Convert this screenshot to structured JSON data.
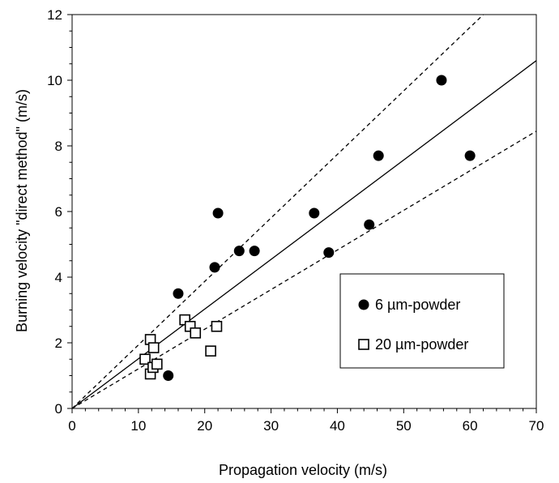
{
  "chart_data": {
    "type": "scatter",
    "title": "",
    "xlabel": "Propagation velocity (m/s)",
    "ylabel": "Burning velocity \"direct method\" (m/s)",
    "xlim": [
      0,
      70
    ],
    "ylim": [
      0,
      12
    ],
    "x_ticks": [
      0,
      10,
      20,
      30,
      40,
      50,
      60,
      70
    ],
    "y_ticks": [
      0,
      2,
      4,
      6,
      8,
      10,
      12
    ],
    "grid": false,
    "legend_position": "lower-right",
    "series": [
      {
        "name": "6 µm-powder",
        "marker": "filled-circle",
        "color": "#000000",
        "points": [
          [
            14.5,
            1.0
          ],
          [
            16.0,
            3.5
          ],
          [
            21.5,
            4.3
          ],
          [
            22.0,
            5.95
          ],
          [
            25.2,
            4.8
          ],
          [
            27.5,
            4.8
          ],
          [
            36.5,
            5.95
          ],
          [
            38.7,
            4.75
          ],
          [
            44.8,
            5.6
          ],
          [
            46.2,
            7.7
          ],
          [
            55.7,
            10.0
          ],
          [
            60.0,
            7.7
          ]
        ]
      },
      {
        "name": "20 µm-powder",
        "marker": "open-square",
        "color": "#000000",
        "points": [
          [
            11.0,
            1.5
          ],
          [
            11.8,
            2.1
          ],
          [
            11.8,
            1.05
          ],
          [
            12.2,
            1.25
          ],
          [
            12.3,
            1.85
          ],
          [
            12.8,
            1.35
          ],
          [
            17.0,
            2.7
          ],
          [
            17.8,
            2.5
          ],
          [
            18.6,
            2.3
          ],
          [
            20.9,
            1.75
          ],
          [
            21.8,
            2.5
          ]
        ]
      }
    ],
    "lines": [
      {
        "style": "solid",
        "slope": 0.1514
      },
      {
        "style": "dashed",
        "slope": 0.1935
      },
      {
        "style": "dashed",
        "slope": 0.1207
      }
    ]
  }
}
